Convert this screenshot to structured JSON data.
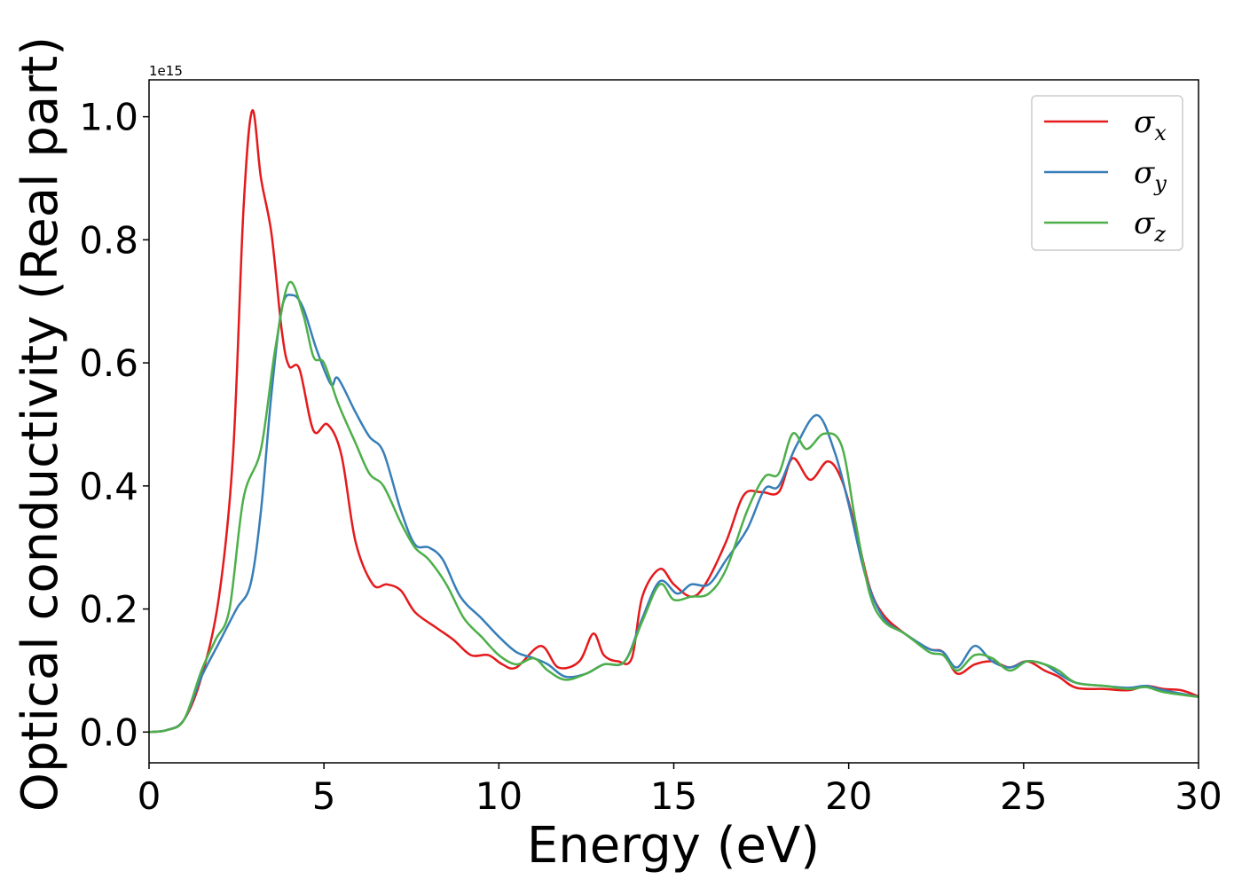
{
  "chart_data": {
    "type": "line",
    "xlabel": "Energy (eV)",
    "ylabel": "Optical conductivity (Real part)",
    "y_offset_label": "1e15",
    "xlim": [
      0,
      30
    ],
    "ylim": [
      -0.05,
      1.06
    ],
    "x_ticks": [
      0,
      5,
      10,
      15,
      20,
      25,
      30
    ],
    "x_tick_labels": [
      "0",
      "5",
      "10",
      "15",
      "20",
      "25",
      "30"
    ],
    "y_ticks": [
      0.0,
      0.2,
      0.4,
      0.6,
      0.8,
      1.0
    ],
    "y_tick_labels": [
      "0.0",
      "0.2",
      "0.4",
      "0.6",
      "0.8",
      "1.0"
    ],
    "grid": false,
    "legend_position": "top-right",
    "series": [
      {
        "name": "σx",
        "label_base": "σ",
        "label_sub": "x",
        "color": "#e41a1c",
        "points": [
          [
            0,
            0
          ],
          [
            0.5,
            0.003
          ],
          [
            1,
            0.02
          ],
          [
            1.5,
            0.09
          ],
          [
            2,
            0.22
          ],
          [
            2.4,
            0.45
          ],
          [
            2.7,
            0.85
          ],
          [
            2.95,
            1.01
          ],
          [
            3.2,
            0.9
          ],
          [
            3.5,
            0.81
          ],
          [
            3.8,
            0.65
          ],
          [
            4.0,
            0.595
          ],
          [
            4.3,
            0.59
          ],
          [
            4.7,
            0.49
          ],
          [
            5.1,
            0.5
          ],
          [
            5.5,
            0.45
          ],
          [
            5.9,
            0.31
          ],
          [
            6.4,
            0.24
          ],
          [
            6.8,
            0.24
          ],
          [
            7.2,
            0.23
          ],
          [
            7.6,
            0.195
          ],
          [
            8.2,
            0.17
          ],
          [
            8.7,
            0.15
          ],
          [
            9.2,
            0.125
          ],
          [
            9.7,
            0.125
          ],
          [
            10.1,
            0.11
          ],
          [
            10.5,
            0.105
          ],
          [
            11.2,
            0.14
          ],
          [
            11.7,
            0.105
          ],
          [
            12.3,
            0.115
          ],
          [
            12.7,
            0.16
          ],
          [
            13.0,
            0.125
          ],
          [
            13.4,
            0.115
          ],
          [
            13.8,
            0.12
          ],
          [
            14.1,
            0.22
          ],
          [
            14.6,
            0.265
          ],
          [
            15.0,
            0.24
          ],
          [
            15.5,
            0.22
          ],
          [
            15.9,
            0.24
          ],
          [
            16.5,
            0.31
          ],
          [
            17.0,
            0.385
          ],
          [
            17.5,
            0.39
          ],
          [
            18.0,
            0.39
          ],
          [
            18.4,
            0.445
          ],
          [
            18.9,
            0.41
          ],
          [
            19.4,
            0.44
          ],
          [
            19.8,
            0.41
          ],
          [
            20.2,
            0.33
          ],
          [
            20.6,
            0.235
          ],
          [
            21.0,
            0.19
          ],
          [
            21.6,
            0.16
          ],
          [
            22.3,
            0.135
          ],
          [
            22.7,
            0.13
          ],
          [
            23.1,
            0.095
          ],
          [
            23.6,
            0.11
          ],
          [
            24.1,
            0.115
          ],
          [
            24.6,
            0.105
          ],
          [
            25.1,
            0.115
          ],
          [
            25.6,
            0.1
          ],
          [
            26.0,
            0.09
          ],
          [
            26.5,
            0.072
          ],
          [
            27.3,
            0.07
          ],
          [
            28.0,
            0.068
          ],
          [
            28.5,
            0.075
          ],
          [
            29.0,
            0.07
          ],
          [
            29.5,
            0.068
          ],
          [
            30,
            0.058
          ]
        ]
      },
      {
        "name": "σy",
        "label_base": "σ",
        "label_sub": "y",
        "color": "#377eb8",
        "points": [
          [
            0,
            0
          ],
          [
            0.5,
            0.003
          ],
          [
            1,
            0.02
          ],
          [
            1.5,
            0.09
          ],
          [
            2,
            0.145
          ],
          [
            2.5,
            0.2
          ],
          [
            2.9,
            0.24
          ],
          [
            3.2,
            0.36
          ],
          [
            3.5,
            0.55
          ],
          [
            3.8,
            0.69
          ],
          [
            4.1,
            0.71
          ],
          [
            4.4,
            0.69
          ],
          [
            4.8,
            0.62
          ],
          [
            5.2,
            0.565
          ],
          [
            5.4,
            0.575
          ],
          [
            5.9,
            0.52
          ],
          [
            6.3,
            0.48
          ],
          [
            6.7,
            0.455
          ],
          [
            7.2,
            0.36
          ],
          [
            7.6,
            0.305
          ],
          [
            8.0,
            0.3
          ],
          [
            8.4,
            0.28
          ],
          [
            8.9,
            0.22
          ],
          [
            9.5,
            0.185
          ],
          [
            10.0,
            0.155
          ],
          [
            10.5,
            0.13
          ],
          [
            11.0,
            0.12
          ],
          [
            11.4,
            0.11
          ],
          [
            11.9,
            0.09
          ],
          [
            12.5,
            0.095
          ],
          [
            13.0,
            0.11
          ],
          [
            13.6,
            0.115
          ],
          [
            14.1,
            0.185
          ],
          [
            14.6,
            0.245
          ],
          [
            15.1,
            0.225
          ],
          [
            15.5,
            0.24
          ],
          [
            16.0,
            0.24
          ],
          [
            16.5,
            0.28
          ],
          [
            17.1,
            0.33
          ],
          [
            17.6,
            0.395
          ],
          [
            18.0,
            0.4
          ],
          [
            18.5,
            0.465
          ],
          [
            19.1,
            0.515
          ],
          [
            19.6,
            0.455
          ],
          [
            20.0,
            0.37
          ],
          [
            20.5,
            0.25
          ],
          [
            21.0,
            0.185
          ],
          [
            21.6,
            0.16
          ],
          [
            22.3,
            0.135
          ],
          [
            22.7,
            0.13
          ],
          [
            23.1,
            0.105
          ],
          [
            23.6,
            0.14
          ],
          [
            24.1,
            0.115
          ],
          [
            24.6,
            0.105
          ],
          [
            25.1,
            0.115
          ],
          [
            25.6,
            0.11
          ],
          [
            26.0,
            0.095
          ],
          [
            26.5,
            0.08
          ],
          [
            27.3,
            0.075
          ],
          [
            28.0,
            0.072
          ],
          [
            28.5,
            0.075
          ],
          [
            29.0,
            0.068
          ],
          [
            30,
            0.057
          ]
        ]
      },
      {
        "name": "σz",
        "label_base": "σ",
        "label_sub": "z",
        "color": "#4daf4a",
        "points": [
          [
            0,
            0
          ],
          [
            0.5,
            0.003
          ],
          [
            1,
            0.02
          ],
          [
            1.5,
            0.1
          ],
          [
            1.9,
            0.15
          ],
          [
            2.3,
            0.2
          ],
          [
            2.7,
            0.38
          ],
          [
            3.2,
            0.46
          ],
          [
            3.6,
            0.62
          ],
          [
            4.0,
            0.73
          ],
          [
            4.4,
            0.68
          ],
          [
            4.7,
            0.61
          ],
          [
            5.0,
            0.6
          ],
          [
            5.4,
            0.535
          ],
          [
            5.9,
            0.47
          ],
          [
            6.3,
            0.42
          ],
          [
            6.7,
            0.4
          ],
          [
            7.2,
            0.34
          ],
          [
            7.6,
            0.3
          ],
          [
            8.0,
            0.28
          ],
          [
            8.5,
            0.24
          ],
          [
            9.0,
            0.185
          ],
          [
            9.5,
            0.155
          ],
          [
            10.0,
            0.125
          ],
          [
            10.5,
            0.11
          ],
          [
            11.0,
            0.12
          ],
          [
            11.4,
            0.1
          ],
          [
            11.9,
            0.085
          ],
          [
            12.5,
            0.095
          ],
          [
            13.0,
            0.11
          ],
          [
            13.6,
            0.115
          ],
          [
            14.1,
            0.18
          ],
          [
            14.6,
            0.24
          ],
          [
            15.0,
            0.215
          ],
          [
            15.5,
            0.22
          ],
          [
            16.0,
            0.225
          ],
          [
            16.5,
            0.265
          ],
          [
            17.1,
            0.36
          ],
          [
            17.6,
            0.415
          ],
          [
            18.0,
            0.42
          ],
          [
            18.4,
            0.485
          ],
          [
            18.8,
            0.46
          ],
          [
            19.3,
            0.485
          ],
          [
            19.8,
            0.465
          ],
          [
            20.2,
            0.34
          ],
          [
            20.6,
            0.225
          ],
          [
            21.0,
            0.18
          ],
          [
            21.6,
            0.16
          ],
          [
            22.3,
            0.13
          ],
          [
            22.7,
            0.125
          ],
          [
            23.1,
            0.1
          ],
          [
            23.6,
            0.125
          ],
          [
            24.1,
            0.12
          ],
          [
            24.6,
            0.1
          ],
          [
            25.1,
            0.115
          ],
          [
            25.6,
            0.11
          ],
          [
            26.0,
            0.1
          ],
          [
            26.5,
            0.08
          ],
          [
            27.3,
            0.075
          ],
          [
            28.0,
            0.07
          ],
          [
            28.5,
            0.073
          ],
          [
            29.0,
            0.065
          ],
          [
            30,
            0.057
          ]
        ]
      }
    ]
  }
}
